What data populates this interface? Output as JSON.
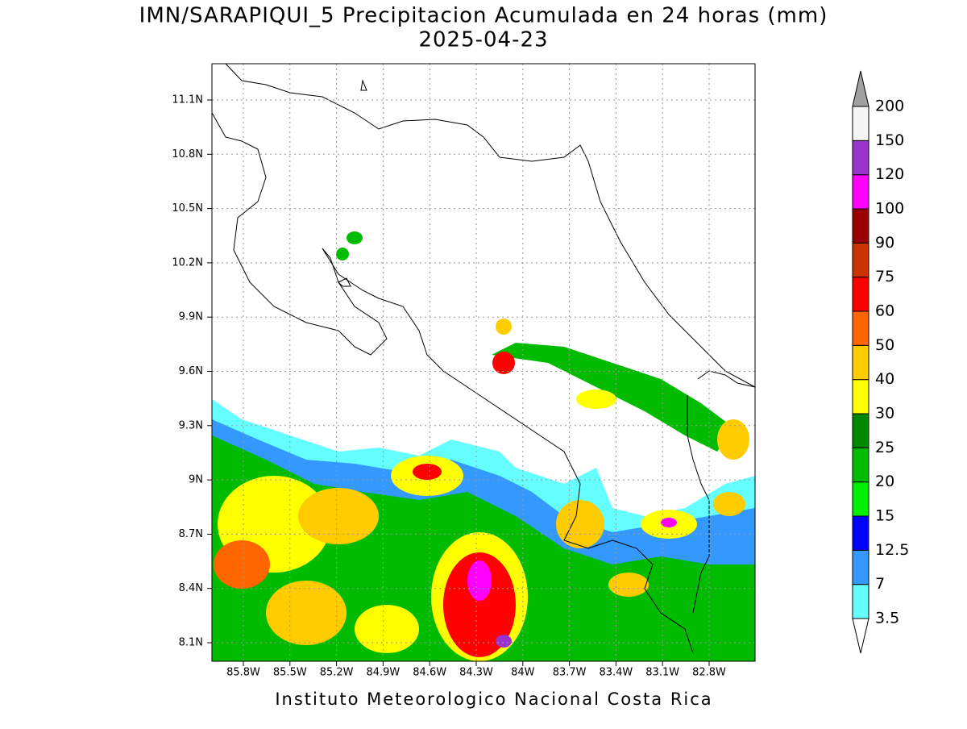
{
  "header": {
    "title": "IMN/SARAPIQUI_5 Precipitacion Acumulada en 24 horas (mm)",
    "subtitle": "2025-04-23"
  },
  "map": {
    "lat_labels": [
      "11.1N",
      "10.8N",
      "10.5N",
      "10.2N",
      "9.9N",
      "9.6N",
      "9.3N",
      "9N",
      "8.7N",
      "8.4N",
      "8.1N"
    ],
    "lon_labels": [
      "85.8W",
      "85.5W",
      "85.2W",
      "84.9W",
      "84.6W",
      "84.3W",
      "84W",
      "83.7W",
      "83.4W",
      "83.1W",
      "82.8W"
    ],
    "grid": true
  },
  "colorbar": {
    "levels": [
      "3.5",
      "7",
      "12.5",
      "15",
      "20",
      "25",
      "30",
      "40",
      "50",
      "60",
      "75",
      "90",
      "100",
      "120",
      "150",
      "200"
    ],
    "colors": [
      "#66ffff",
      "#3399ff",
      "#0000ff",
      "#00ee00",
      "#00bb00",
      "#008800",
      "#ffff00",
      "#ffcc00",
      "#ff6600",
      "#ff0000",
      "#cc3300",
      "#990000",
      "#ff00ff",
      "#9933cc",
      "#f5f5f5"
    ],
    "under_color": "#ffffff",
    "over_color": "#a0a0a0"
  },
  "footer": "Instituto Meteorologico Nacional Costa Rica"
}
